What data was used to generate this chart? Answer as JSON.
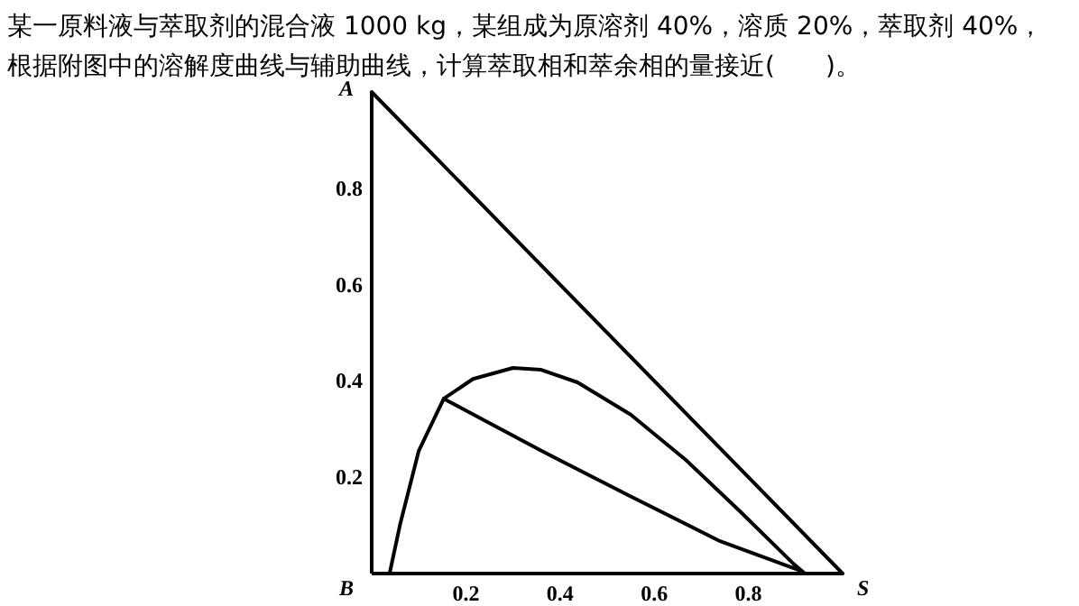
{
  "chart_data": {
    "type": "line",
    "title": "某一原料液与萃取剂的混合液 1000 kg，某组成为原溶剂 40%，溶质 20%，萃取剂 40%，根据附图中的溶解度曲线与辅助曲线，计算萃取相和萃余相的量接近(　　)。",
    "xlim": [
      0,
      1
    ],
    "ylim": [
      0,
      1
    ],
    "xticks": [
      0.2,
      0.4,
      0.6,
      0.8
    ],
    "yticks": [
      0.2,
      0.4,
      0.6,
      0.8
    ],
    "grid": false,
    "marker": "none",
    "line_style": "solid",
    "series": [
      {
        "color": "#000000",
        "x": [
          0,
          1
        ],
        "values": [
          1,
          0
        ]
      },
      {
        "color": "#000000",
        "x": [
          0.038,
          0.061,
          0.1,
          0.153,
          0.215,
          0.3,
          0.36,
          0.437,
          0.55,
          0.667,
          0.78,
          0.897,
          0.92
        ],
        "values": [
          0,
          0.105,
          0.255,
          0.363,
          0.404,
          0.427,
          0.423,
          0.397,
          0.33,
          0.236,
          0.131,
          0.019,
          0
        ]
      },
      {
        "color": "#000000",
        "x": [
          0.153,
          0.36,
          0.55,
          0.74,
          0.908
        ],
        "values": [
          0.363,
          0.255,
          0.16,
          0.067,
          0.007
        ]
      }
    ],
    "annotations": [
      "A",
      "B",
      "S"
    ]
  }
}
